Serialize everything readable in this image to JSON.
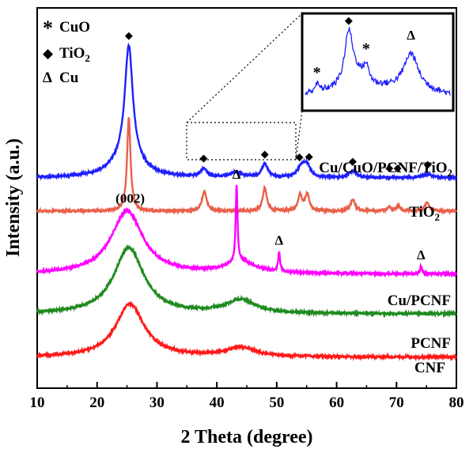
{
  "chart_data": {
    "type": "line",
    "xlabel": "2 Theta (degree)",
    "ylabel": "Intensity (a.u.)",
    "xlim": [
      10,
      80
    ],
    "x_ticks": [
      10,
      20,
      30,
      40,
      50,
      60,
      70,
      80
    ],
    "y_ticks_labeled": false,
    "legend": {
      "placement": "top-left",
      "entries": [
        {
          "symbol": "*",
          "label": "CuO"
        },
        {
          "symbol": "◆",
          "label": "TiO",
          "sub": "2"
        },
        {
          "symbol": "Δ",
          "label": "Cu"
        }
      ]
    },
    "series": [
      {
        "name": "Cu/CuO/PCNF/TiO2",
        "label_text": "Cu/CuO/PCNF/TiO",
        "label_sub": "2",
        "color": "#1f1fff",
        "baseline": 0.55,
        "peaks": [
          {
            "x": 25.3,
            "h": 0.34,
            "w": 0.8
          },
          {
            "x": 25.0,
            "h": 0.06,
            "w": 3.0
          },
          {
            "x": 37.8,
            "h": 0.025,
            "w": 0.6
          },
          {
            "x": 43.2,
            "h": 0.015,
            "w": 1.2
          },
          {
            "x": 48.0,
            "h": 0.04,
            "w": 0.6
          },
          {
            "x": 54.2,
            "h": 0.035,
            "w": 0.8
          },
          {
            "x": 55.1,
            "h": 0.03,
            "w": 0.6
          },
          {
            "x": 62.7,
            "h": 0.02,
            "w": 0.8
          },
          {
            "x": 75.1,
            "h": 0.012,
            "w": 0.8
          }
        ],
        "markers": [
          {
            "x": 25.3,
            "symbol": "◆"
          },
          {
            "x": 37.8,
            "symbol": "◆"
          },
          {
            "x": 48.0,
            "symbol": "◆"
          },
          {
            "x": 53.8,
            "symbol": "◆"
          },
          {
            "x": 55.4,
            "symbol": "◆"
          },
          {
            "x": 62.7,
            "symbol": "◆"
          },
          {
            "x": 68.8,
            "symbol": "◆"
          },
          {
            "x": 70.2,
            "symbol": "◆"
          },
          {
            "x": 75.2,
            "symbol": "◆"
          }
        ]
      },
      {
        "name": "TiO2",
        "label_text": "TiO",
        "label_sub": "2",
        "color": "#e9604a",
        "baseline": 0.45,
        "peaks": [
          {
            "x": 25.3,
            "h": 0.28,
            "w": 0.35
          },
          {
            "x": 37.9,
            "h": 0.06,
            "w": 0.45
          },
          {
            "x": 48.0,
            "h": 0.07,
            "w": 0.4
          },
          {
            "x": 53.9,
            "h": 0.05,
            "w": 0.4
          },
          {
            "x": 55.1,
            "h": 0.05,
            "w": 0.4
          },
          {
            "x": 62.7,
            "h": 0.035,
            "w": 0.45
          },
          {
            "x": 68.8,
            "h": 0.012,
            "w": 0.4
          },
          {
            "x": 70.3,
            "h": 0.015,
            "w": 0.4
          },
          {
            "x": 75.1,
            "h": 0.025,
            "w": 0.45
          }
        ]
      },
      {
        "name": "Cu/PCNF",
        "label_text": "Cu/PCNF",
        "color": "#ff00ff",
        "baseline": 0.26,
        "peaks": [
          {
            "x": 25.0,
            "h": 0.19,
            "w": 3.2
          },
          {
            "x": 44.0,
            "h": 0.035,
            "w": 3.0
          },
          {
            "x": 43.3,
            "h": 0.23,
            "w": 0.18
          },
          {
            "x": 50.4,
            "h": 0.06,
            "w": 0.18
          },
          {
            "x": 74.1,
            "h": 0.025,
            "w": 0.18
          }
        ],
        "markers": [
          {
            "x": 43.3,
            "symbol": "Δ"
          },
          {
            "x": 50.4,
            "symbol": "Δ"
          },
          {
            "x": 74.1,
            "symbol": "Δ"
          }
        ],
        "peak_label": {
          "x": 25.0,
          "text": "(002)"
        }
      },
      {
        "name": "PCNF",
        "label_text": "PCNF",
        "color": "#1f8a1f",
        "baseline": 0.14,
        "peaks": [
          {
            "x": 25.3,
            "h": 0.2,
            "w": 3.0
          },
          {
            "x": 44.0,
            "h": 0.04,
            "w": 3.0
          }
        ]
      },
      {
        "name": "CNF",
        "label_text": "CNF",
        "color": "#ff1a1a",
        "baseline": 0.01,
        "peaks": [
          {
            "x": 25.5,
            "h": 0.16,
            "w": 2.9
          },
          {
            "x": 44.0,
            "h": 0.028,
            "w": 3.0
          }
        ]
      }
    ],
    "inset": {
      "description_source_region_x": [
        35,
        57
      ],
      "markers": [
        {
          "rel": 0.08,
          "symbol": "*"
        },
        {
          "rel": 0.3,
          "symbol": "◆"
        },
        {
          "rel": 0.42,
          "symbol": "*"
        },
        {
          "rel": 0.73,
          "symbol": "Δ"
        }
      ]
    }
  }
}
